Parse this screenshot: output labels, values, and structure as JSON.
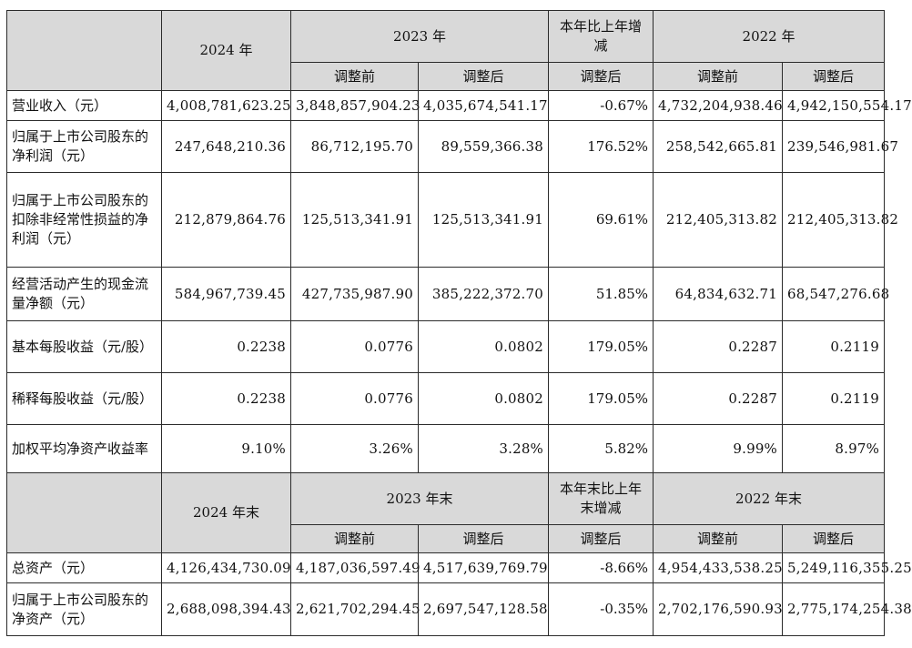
{
  "header1": {
    "y2024": "2024 年",
    "y2023": "2023 年",
    "change": "本年比上年增减",
    "y2022": "2022 年",
    "before": "调整前",
    "after": "调整后",
    "change_after": "调整后"
  },
  "header2": {
    "y2024": "2024 年末",
    "y2023": "2023 年末",
    "change": "本年末比上年末增减",
    "y2022": "2022 年末",
    "before": "调整前",
    "after": "调整后",
    "change_after": "调整后"
  },
  "rows1": [
    {
      "label": "营业收入（元）",
      "v2024": "4,008,781,623.25",
      "v2023_before": "3,848,857,904.23",
      "v2023_after": "4,035,674,541.17",
      "change": "-0.67%",
      "v2022_before": "4,732,204,938.46",
      "v2022_after": "4,942,150,554.17"
    },
    {
      "label": "归属于上市公司股东的净利润（元）",
      "v2024": "247,648,210.36",
      "v2023_before": "86,712,195.70",
      "v2023_after": "89,559,366.38",
      "change": "176.52%",
      "v2022_before": "258,542,665.81",
      "v2022_after": "239,546,981.67"
    },
    {
      "label": "归属于上市公司股东的扣除非经常性损益的净利润（元）",
      "v2024": "212,879,864.76",
      "v2023_before": "125,513,341.91",
      "v2023_after": "125,513,341.91",
      "change": "69.61%",
      "v2022_before": "212,405,313.82",
      "v2022_after": "212,405,313.82"
    },
    {
      "label": "经营活动产生的现金流量净额（元）",
      "v2024": "584,967,739.45",
      "v2023_before": "427,735,987.90",
      "v2023_after": "385,222,372.70",
      "change": "51.85%",
      "v2022_before": "64,834,632.71",
      "v2022_after": "68,547,276.68"
    },
    {
      "label": "基本每股收益（元/股）",
      "v2024": "0.2238",
      "v2023_before": "0.0776",
      "v2023_after": "0.0802",
      "change": "179.05%",
      "v2022_before": "0.2287",
      "v2022_after": "0.2119"
    },
    {
      "label": "稀释每股收益（元/股）",
      "v2024": "0.2238",
      "v2023_before": "0.0776",
      "v2023_after": "0.0802",
      "change": "179.05%",
      "v2022_before": "0.2287",
      "v2022_after": "0.2119"
    },
    {
      "label": "加权平均净资产收益率",
      "v2024": "9.10%",
      "v2023_before": "3.26%",
      "v2023_after": "3.28%",
      "change": "5.82%",
      "v2022_before": "9.99%",
      "v2022_after": "8.97%"
    }
  ],
  "rows2": [
    {
      "label": "总资产（元）",
      "v2024": "4,126,434,730.09",
      "v2023_before": "4,187,036,597.49",
      "v2023_after": "4,517,639,769.79",
      "change": "-8.66%",
      "v2022_before": "4,954,433,538.25",
      "v2022_after": "5,249,116,355.25"
    },
    {
      "label": "归属于上市公司股东的净资产（元）",
      "v2024": "2,688,098,394.43",
      "v2023_before": "2,621,702,294.45",
      "v2023_after": "2,697,547,128.58",
      "change": "-0.35%",
      "v2022_before": "2,702,176,590.93",
      "v2022_after": "2,775,174,254.38"
    }
  ]
}
